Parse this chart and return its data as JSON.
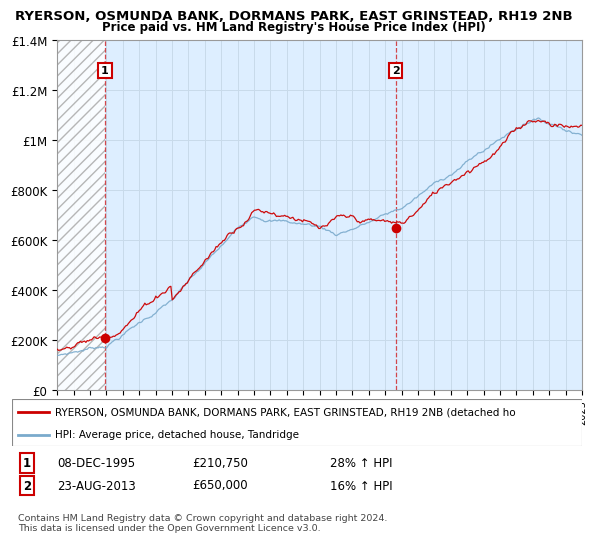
{
  "title": "RYERSON, OSMUNDA BANK, DORMANS PARK, EAST GRINSTEAD, RH19 2NB",
  "subtitle": "Price paid vs. HM Land Registry's House Price Index (HPI)",
  "ylim": [
    0,
    1400000
  ],
  "yticks": [
    0,
    200000,
    400000,
    600000,
    800000,
    1000000,
    1200000,
    1400000
  ],
  "ytick_labels": [
    "£0",
    "£200K",
    "£400K",
    "£600K",
    "£800K",
    "£1M",
    "£1.2M",
    "£1.4M"
  ],
  "x_start_year": 1993,
  "x_end_year": 2025,
  "sale1_year": 1995.92,
  "sale1_price": 210750,
  "sale1_label": "1",
  "sale1_date": "08-DEC-1995",
  "sale1_hpi_pct": "28%",
  "sale2_year": 2013.64,
  "sale2_price": 650000,
  "sale2_label": "2",
  "sale2_date": "23-AUG-2013",
  "sale2_hpi_pct": "16%",
  "red_line_color": "#cc0000",
  "blue_line_color": "#7aaacc",
  "grid_color": "#c8daea",
  "background_color": "#ddeeff",
  "legend_label_red": "RYERSON, OSMUNDA BANK, DORMANS PARK, EAST GRINSTEAD, RH19 2NB (detached ho",
  "legend_label_blue": "HPI: Average price, detached house, Tandridge",
  "footnote": "Contains HM Land Registry data © Crown copyright and database right 2024.\nThis data is licensed under the Open Government Licence v3.0."
}
